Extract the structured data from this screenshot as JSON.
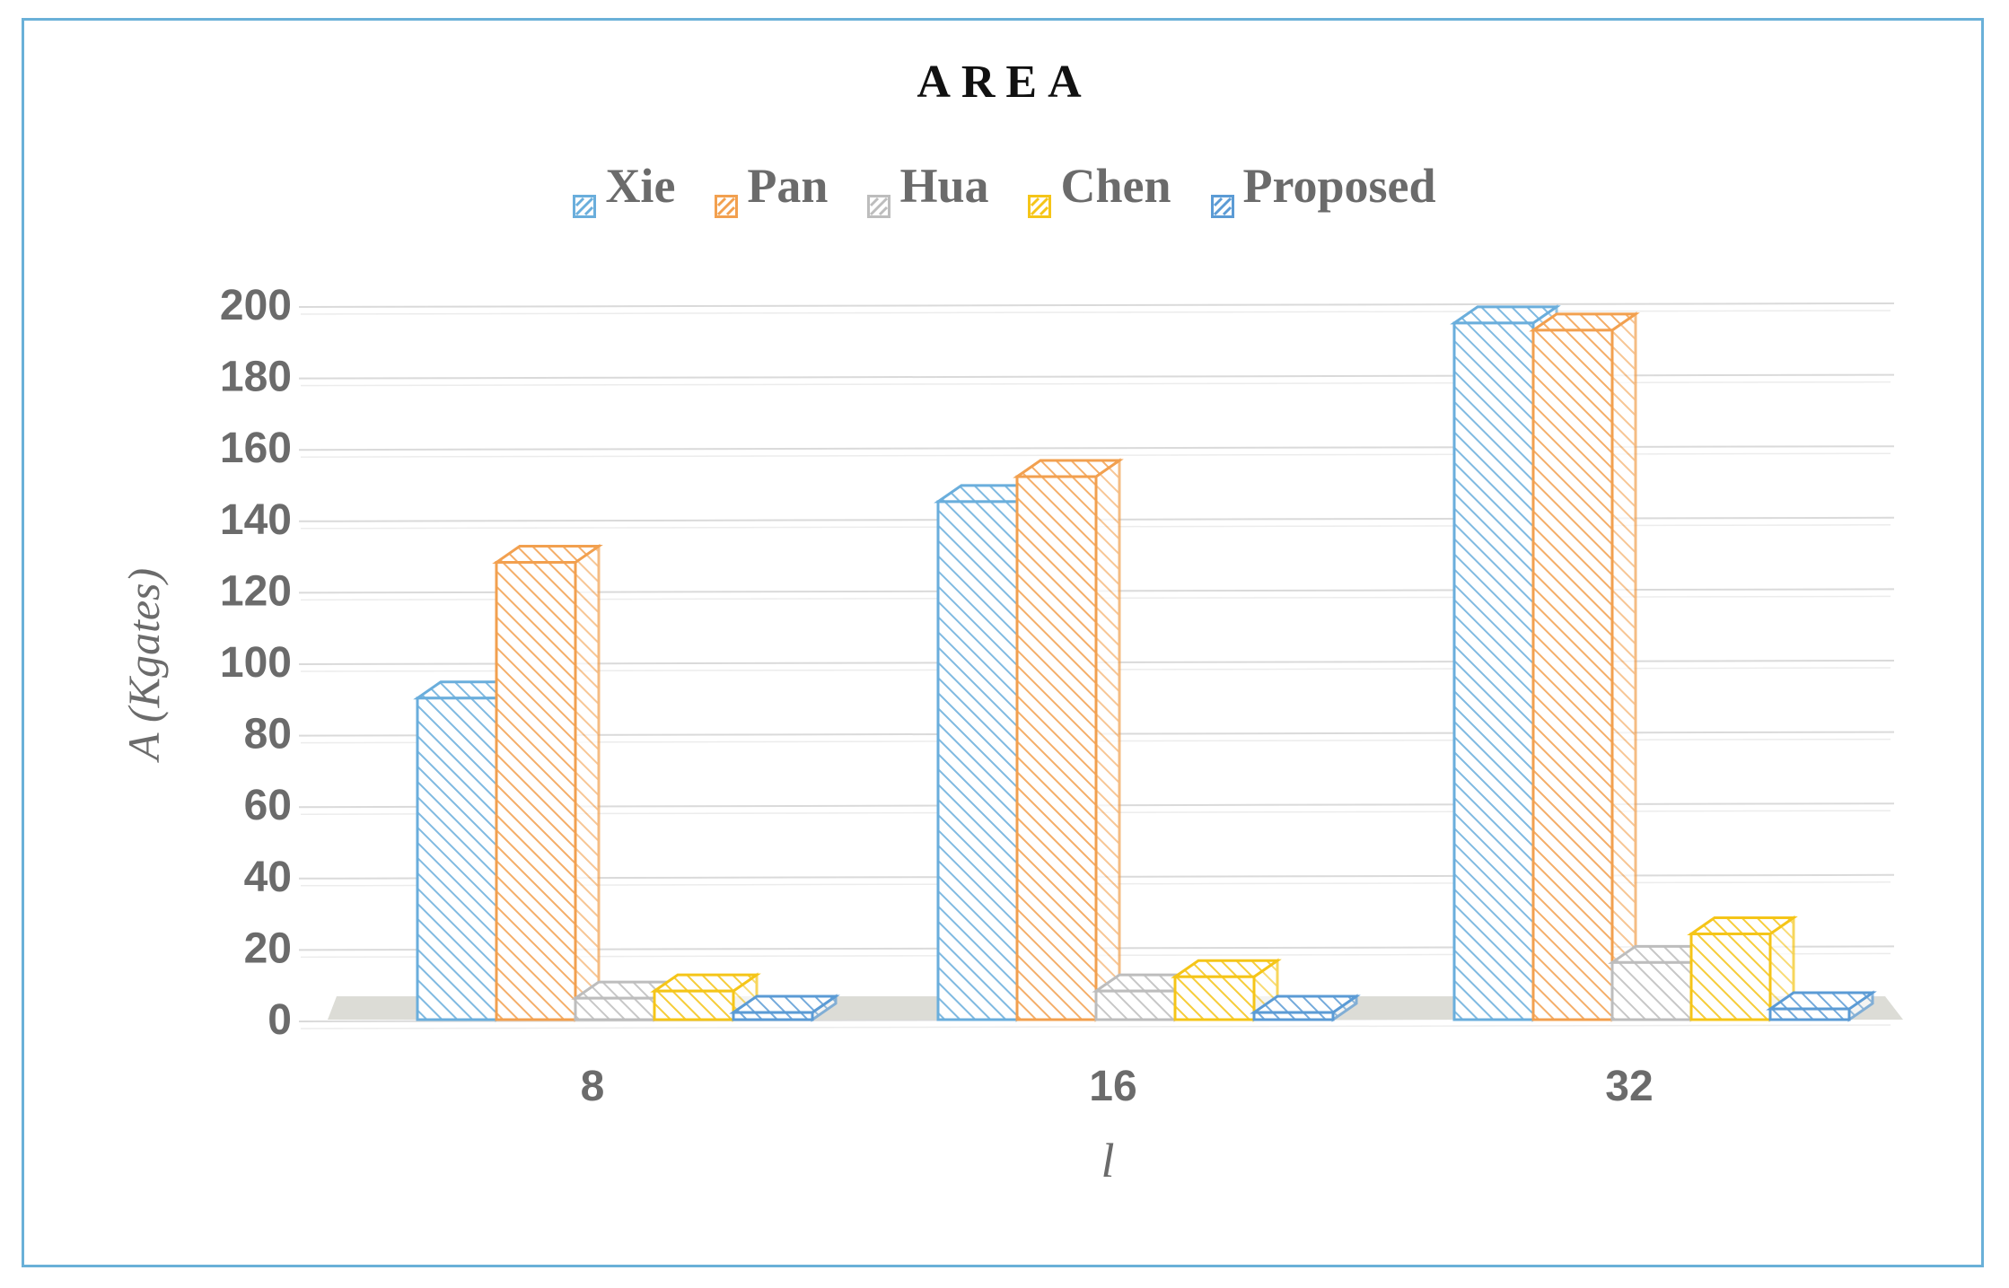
{
  "chart_data": {
    "type": "bar",
    "title": "AREA",
    "xlabel": "l",
    "ylabel": "A (Kgates)",
    "categories": [
      "8",
      "16",
      "32"
    ],
    "yticks": [
      "0",
      "20",
      "40",
      "60",
      "80",
      "100",
      "120",
      "140",
      "160",
      "180",
      "200"
    ],
    "ylim": [
      0,
      200
    ],
    "grid": true,
    "legend_position": "top",
    "series": [
      {
        "name": "Xie",
        "values": [
          90,
          145,
          195
        ],
        "color": "#6aaedc"
      },
      {
        "name": "Pan",
        "values": [
          128,
          152,
          193
        ],
        "color": "#f2a04f"
      },
      {
        "name": "Hua",
        "values": [
          6,
          8,
          16
        ],
        "color": "#bdbdbd"
      },
      {
        "name": "Chen",
        "values": [
          8,
          12,
          24
        ],
        "color": "#f5c518"
      },
      {
        "name": "Proposed",
        "values": [
          2,
          2,
          3
        ],
        "color": "#5b9bd5"
      }
    ]
  }
}
